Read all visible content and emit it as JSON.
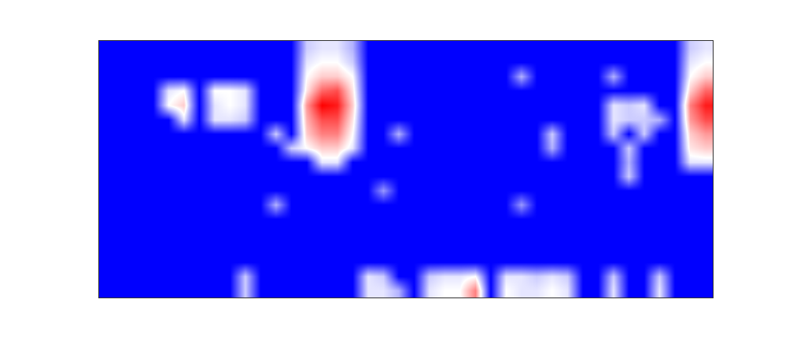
{
  "chart_data": {
    "type": "heatmap",
    "tick_labels": false,
    "cells": [
      [
        0,
        0,
        0,
        0,
        0,
        0,
        0,
        0,
        0,
        0,
        0,
        0,
        0,
        0.4,
        0.45,
        0.45,
        0.35,
        0,
        0,
        0,
        0,
        0,
        0,
        0,
        0,
        0,
        0,
        0,
        0,
        0,
        0,
        0,
        0,
        0,
        0,
        0,
        0,
        0,
        0.4,
        0.45
      ],
      [
        0,
        0,
        0,
        0,
        0,
        0,
        0,
        0,
        0,
        0,
        0,
        0,
        0,
        0.45,
        0.5,
        0.5,
        0.4,
        0,
        0,
        0,
        0,
        0,
        0,
        0,
        0,
        0,
        0,
        0,
        0,
        0,
        0,
        0,
        0,
        0,
        0,
        0,
        0,
        0,
        0.45,
        0.5
      ],
      [
        0,
        0,
        0,
        0,
        0,
        0,
        0,
        0,
        0,
        0,
        0,
        0,
        0,
        0.5,
        0.6,
        0.6,
        0.5,
        0,
        0,
        0,
        0,
        0,
        0,
        0,
        0,
        0,
        0,
        0.35,
        0,
        0,
        0,
        0,
        0,
        0.35,
        0,
        0,
        0,
        0,
        0.5,
        0.6
      ],
      [
        0,
        0,
        0,
        0,
        0.45,
        0.5,
        0,
        0.5,
        0.5,
        0.45,
        0,
        0,
        0,
        0.55,
        0.8,
        0.85,
        0.55,
        0,
        0,
        0,
        0,
        0,
        0,
        0,
        0,
        0,
        0,
        0,
        0,
        0,
        0,
        0,
        0,
        0,
        0,
        0,
        0,
        0,
        0.6,
        0.8
      ],
      [
        0,
        0,
        0,
        0,
        0.5,
        0.6,
        0,
        0.45,
        0.5,
        0.45,
        0,
        0,
        0,
        0.7,
        1,
        0.95,
        0.6,
        0,
        0,
        0,
        0,
        0,
        0,
        0,
        0,
        0,
        0,
        0,
        0,
        0,
        0,
        0,
        0,
        0.45,
        0.4,
        0.45,
        0,
        0,
        0.75,
        0.95
      ],
      [
        0,
        0,
        0,
        0,
        0,
        0.45,
        0,
        0.45,
        0.45,
        0.4,
        0,
        0,
        0,
        0.65,
        0.85,
        0.85,
        0.55,
        0,
        0,
        0,
        0,
        0,
        0,
        0,
        0,
        0,
        0,
        0,
        0,
        0,
        0,
        0,
        0,
        0.45,
        0.4,
        0.4,
        0.35,
        0,
        0.7,
        0.85
      ],
      [
        0,
        0,
        0,
        0,
        0,
        0,
        0,
        0,
        0,
        0,
        0,
        0.4,
        0,
        0.6,
        0.75,
        0.75,
        0.5,
        0,
        0,
        0.35,
        0,
        0,
        0,
        0,
        0,
        0,
        0,
        0,
        0,
        0.4,
        0,
        0,
        0,
        0.4,
        0,
        0.4,
        0,
        0,
        0.6,
        0.7
      ],
      [
        0,
        0,
        0,
        0,
        0,
        0,
        0,
        0,
        0,
        0,
        0,
        0,
        0.4,
        0.5,
        0.6,
        0.6,
        0.45,
        0,
        0,
        0,
        0,
        0,
        0,
        0,
        0,
        0,
        0,
        0,
        0,
        0.35,
        0,
        0,
        0,
        0,
        0.4,
        0,
        0,
        0,
        0.55,
        0.6
      ],
      [
        0,
        0,
        0,
        0,
        0,
        0,
        0,
        0,
        0,
        0,
        0,
        0,
        0,
        0,
        0.45,
        0.45,
        0,
        0,
        0,
        0,
        0,
        0,
        0,
        0,
        0,
        0,
        0,
        0,
        0,
        0,
        0,
        0,
        0,
        0,
        0.35,
        0,
        0,
        0,
        0.45,
        0.45
      ],
      [
        0,
        0,
        0,
        0,
        0,
        0,
        0,
        0,
        0,
        0,
        0,
        0,
        0,
        0,
        0,
        0,
        0,
        0,
        0,
        0,
        0,
        0,
        0,
        0,
        0,
        0,
        0,
        0,
        0,
        0,
        0,
        0,
        0,
        0,
        0.4,
        0,
        0,
        0,
        0,
        0
      ],
      [
        0,
        0,
        0,
        0,
        0,
        0,
        0,
        0,
        0,
        0,
        0,
        0,
        0,
        0,
        0,
        0,
        0,
        0,
        0.3,
        0,
        0,
        0,
        0,
        0,
        0,
        0,
        0,
        0,
        0,
        0,
        0,
        0,
        0,
        0,
        0,
        0,
        0,
        0,
        0,
        0
      ],
      [
        0,
        0,
        0,
        0,
        0,
        0,
        0,
        0,
        0,
        0,
        0,
        0.35,
        0,
        0,
        0,
        0,
        0,
        0,
        0,
        0,
        0,
        0,
        0,
        0,
        0,
        0,
        0,
        0.3,
        0,
        0,
        0,
        0,
        0,
        0,
        0,
        0,
        0,
        0,
        0,
        0
      ],
      [
        0,
        0,
        0,
        0,
        0,
        0,
        0,
        0,
        0,
        0,
        0,
        0,
        0,
        0,
        0,
        0,
        0,
        0,
        0,
        0,
        0,
        0,
        0,
        0,
        0,
        0,
        0,
        0,
        0,
        0,
        0,
        0,
        0,
        0,
        0,
        0,
        0,
        0,
        0,
        0
      ],
      [
        0,
        0,
        0,
        0,
        0,
        0,
        0,
        0,
        0,
        0,
        0,
        0,
        0,
        0,
        0,
        0,
        0,
        0,
        0,
        0,
        0,
        0,
        0,
        0,
        0,
        0,
        0,
        0,
        0,
        0,
        0,
        0,
        0,
        0,
        0,
        0,
        0,
        0,
        0,
        0
      ],
      [
        0,
        0,
        0,
        0,
        0,
        0,
        0,
        0,
        0,
        0,
        0,
        0,
        0,
        0,
        0,
        0,
        0,
        0,
        0,
        0,
        0,
        0,
        0,
        0,
        0,
        0,
        0,
        0,
        0,
        0,
        0,
        0,
        0,
        0,
        0,
        0,
        0,
        0,
        0,
        0
      ],
      [
        0,
        0,
        0,
        0,
        0,
        0,
        0,
        0,
        0,
        0,
        0,
        0,
        0,
        0,
        0,
        0,
        0,
        0,
        0,
        0,
        0,
        0,
        0,
        0,
        0,
        0,
        0,
        0,
        0,
        0,
        0,
        0,
        0,
        0,
        0,
        0,
        0,
        0,
        0,
        0
      ],
      [
        0,
        0,
        0,
        0,
        0,
        0,
        0,
        0,
        0,
        0.4,
        0,
        0,
        0,
        0,
        0,
        0,
        0,
        0.45,
        0.4,
        0,
        0,
        0.4,
        0.45,
        0.45,
        0.5,
        0,
        0.45,
        0.45,
        0.4,
        0.45,
        0.4,
        0,
        0,
        0.4,
        0,
        0,
        0.4,
        0,
        0,
        0
      ],
      [
        0,
        0,
        0,
        0,
        0,
        0,
        0,
        0,
        0,
        0.4,
        0,
        0,
        0,
        0,
        0,
        0,
        0,
        0.45,
        0.45,
        0.35,
        0,
        0.45,
        0.5,
        0.5,
        0.75,
        0,
        0.5,
        0.45,
        0.45,
        0.5,
        0.45,
        0,
        0,
        0.45,
        0,
        0,
        0.45,
        0,
        0,
        0
      ]
    ]
  }
}
